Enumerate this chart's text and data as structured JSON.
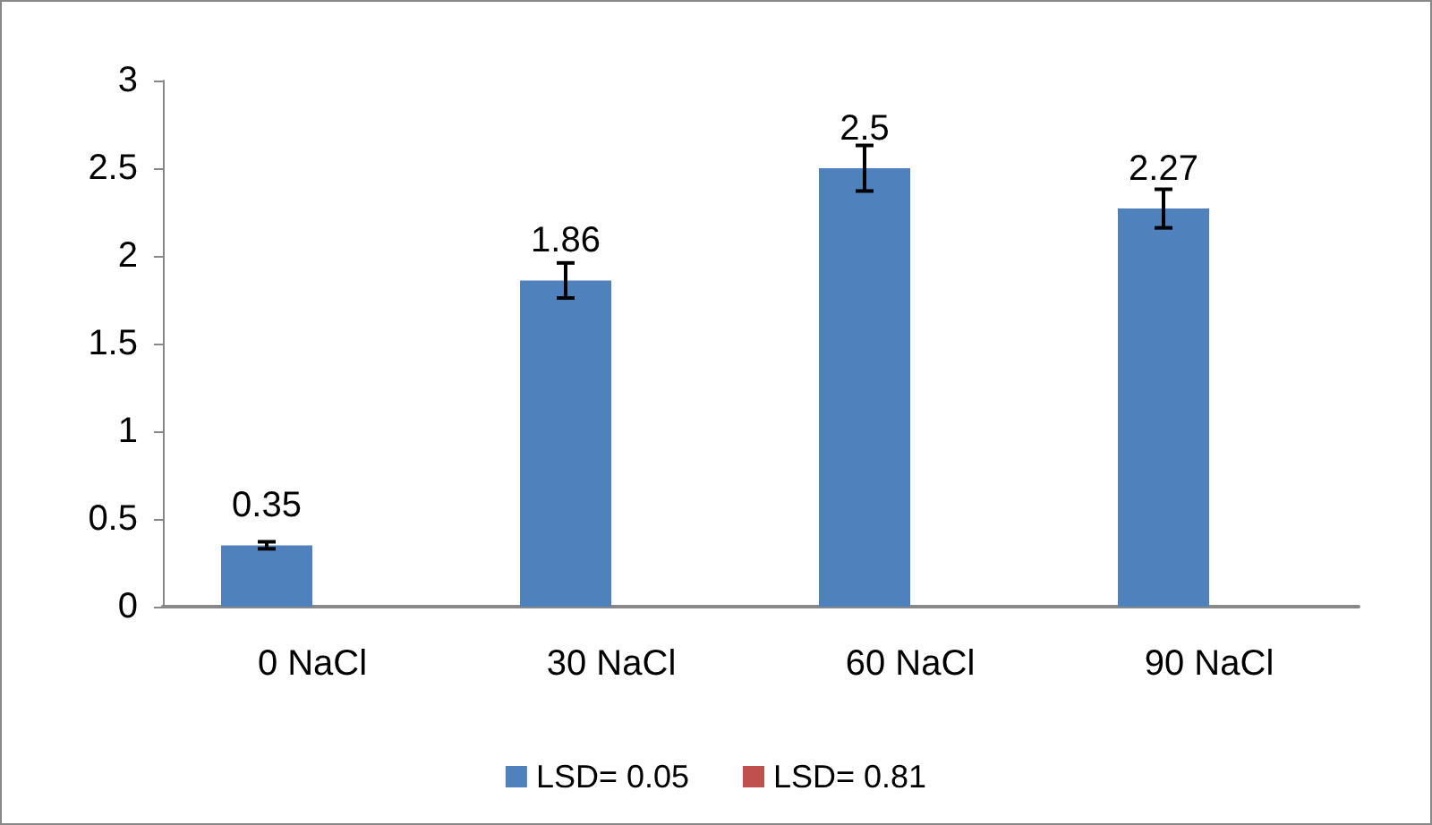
{
  "chart_data": {
    "type": "bar",
    "categories": [
      "0 NaCl",
      "30 NaCl",
      "60 NaCl",
      "90 NaCl"
    ],
    "series": [
      {
        "name": "LSD= 0.05",
        "color": "#4f81bd",
        "values": [
          0.35,
          1.86,
          2.5,
          2.27
        ],
        "errors": [
          0.02,
          0.1,
          0.13,
          0.11
        ]
      },
      {
        "name": "LSD= 0.81",
        "color": "#c0504d",
        "values": [
          null,
          null,
          null,
          null
        ]
      }
    ],
    "ylim": [
      0,
      3
    ],
    "yticks": [
      0,
      0.5,
      1,
      1.5,
      2,
      2.5,
      3
    ],
    "data_labels": true,
    "grid": false,
    "legend": "bottom"
  }
}
